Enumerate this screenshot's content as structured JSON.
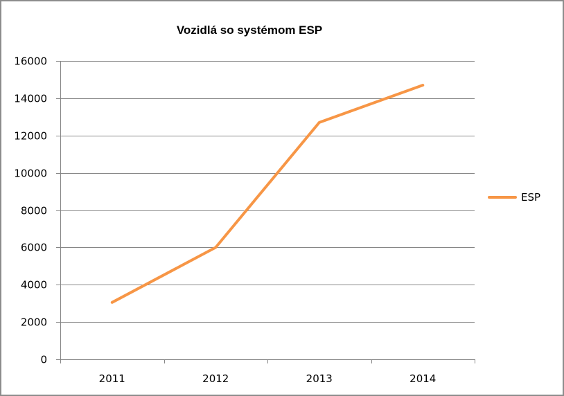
{
  "chart_data": {
    "type": "line",
    "title": "Vozidlá so systémom ESP",
    "xlabel": "",
    "ylabel": "",
    "categories": [
      "2011",
      "2012",
      "2013",
      "2014"
    ],
    "series": [
      {
        "name": "ESP",
        "color": "#f79646",
        "values": [
          3050,
          6000,
          12700,
          14700
        ]
      }
    ],
    "ylim": [
      0,
      16000
    ],
    "yticks": [
      0,
      2000,
      4000,
      6000,
      8000,
      10000,
      12000,
      14000,
      16000
    ],
    "grid": true,
    "legend_position": "right"
  },
  "legend": {
    "label": "ESP"
  }
}
